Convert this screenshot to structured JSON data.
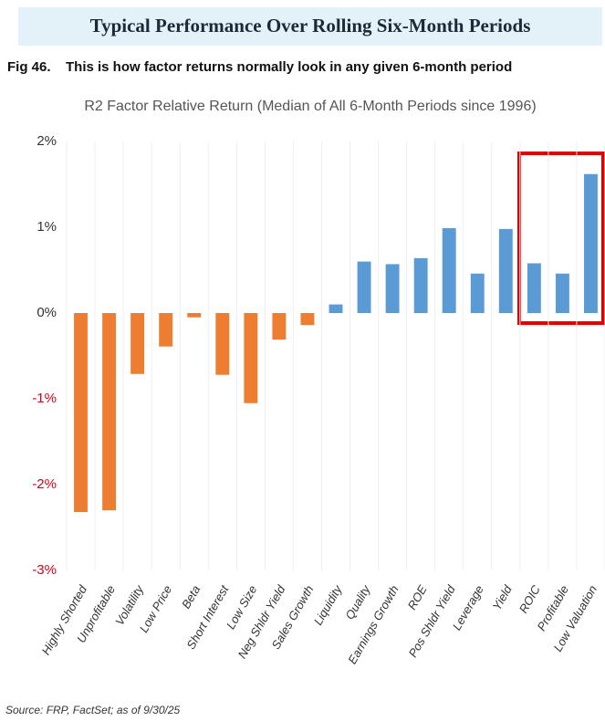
{
  "chart_data": {
    "type": "bar",
    "heading": "Typical Performance Over Rolling Six-Month Periods",
    "figure_label": "Fig 46.",
    "caption": "This is how factor returns normally look in any given 6-month period",
    "title": "R2 Factor Relative Return (Median of All 6-Month Periods since 1996)",
    "categories": [
      "Highly Shorted",
      "Unprofitable",
      "Volatility",
      "Low Price",
      "Beta",
      "Short Interest",
      "Low Size",
      "Neg Shldr Yield",
      "Sales Growth",
      "Liquidity",
      "Quality",
      "Earnings Growth",
      "ROE",
      "Pos Shldr Yield",
      "Leverage",
      "Yield",
      "ROIC",
      "Profitable",
      "Low Valuation"
    ],
    "values": [
      -2.32,
      -2.3,
      -0.71,
      -0.39,
      -0.05,
      -0.72,
      -1.05,
      -0.31,
      -0.14,
      0.1,
      0.6,
      0.57,
      0.64,
      0.99,
      0.46,
      0.98,
      0.58,
      0.46,
      1.62
    ],
    "positive_color": "#5b9bd5",
    "negative_color": "#ed7d31",
    "negative_tick_color": "#d0021b",
    "ylim": [
      -3,
      2
    ],
    "yticks": [
      {
        "value": -3,
        "label": "-3%"
      },
      {
        "value": -2,
        "label": "-2%"
      },
      {
        "value": -1,
        "label": "-1%"
      },
      {
        "value": 0,
        "label": "0%"
      },
      {
        "value": 1,
        "label": "1%"
      },
      {
        "value": 2,
        "label": "2%"
      }
    ],
    "source": "Source: FRP, FactSet; as of 9/30/25"
  }
}
